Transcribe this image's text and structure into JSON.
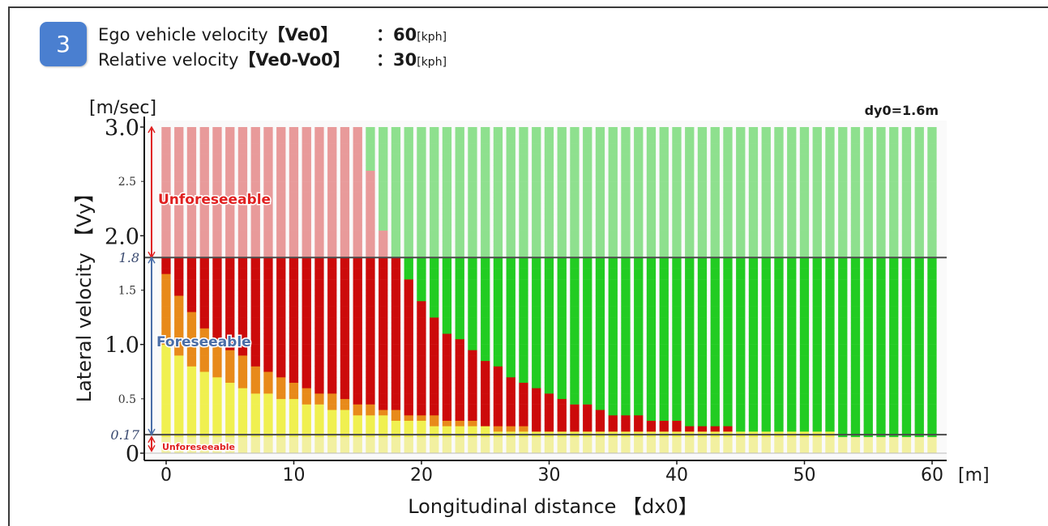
{
  "header": {
    "badge": "3",
    "line1": {
      "label": "Ego vehicle velocity",
      "param": "【Ve0】",
      "sep": "：",
      "value": "60",
      "unit": "[kph]"
    },
    "line2": {
      "label": "Relative velocity",
      "param": "【Ve0-Vo0】",
      "sep": "：",
      "value": "30",
      "unit": "[kph]"
    }
  },
  "chart_data": {
    "type": "heatmap",
    "title": "",
    "annotation": "dy0=1.6m",
    "xlabel": "Longitudinal distance 【dx0】",
    "x_unit": "[m]",
    "ylabel": "Lateral velocity 【Vy】",
    "y_unit": "[m/sec]",
    "xlim": [
      -1.5,
      61.5
    ],
    "ylim": [
      -0.05,
      3.08
    ],
    "x_ticks": [
      0,
      10,
      20,
      30,
      40,
      50,
      60
    ],
    "y_ticks_major": [
      0,
      1.0,
      2.0,
      3.0
    ],
    "y_ticks_minor": [
      0.5,
      1.5,
      2.5
    ],
    "y_ticks_italic": [
      0.17,
      1.8
    ],
    "x_step": 1,
    "y_step": 0.05,
    "thresholds": {
      "lower": 0.17,
      "upper": 1.8
    },
    "regions": [
      {
        "label": "Unforeseeable",
        "y_range": [
          1.8,
          3.0
        ],
        "color": "#e02020"
      },
      {
        "label": "Foreseeable",
        "y_range": [
          0.17,
          1.8
        ],
        "color": "#4a6ea8"
      },
      {
        "label": "Unforeseeable",
        "y_range": [
          0,
          0.17
        ],
        "color": "#e02020"
      }
    ],
    "boundary_red_green": {
      "x": [
        0,
        5,
        10,
        15,
        16,
        17,
        18,
        19,
        20,
        22,
        24,
        26,
        28,
        30,
        32,
        34,
        36,
        38,
        40,
        42,
        44,
        46,
        48,
        50,
        52,
        54,
        56
      ],
      "vy": [
        3.1,
        3.1,
        3.1,
        3.1,
        2.62,
        2.05,
        1.8,
        1.6,
        1.4,
        1.12,
        0.93,
        0.78,
        0.66,
        0.56,
        0.47,
        0.4,
        0.35,
        0.31,
        0.28,
        0.25,
        0.23,
        0.21,
        0.2,
        0.19,
        0.18,
        0.17,
        0.17
      ]
    },
    "boundary_orange_red": {
      "x": [
        0,
        2,
        4,
        6,
        8,
        10,
        12,
        14,
        16,
        18,
        20,
        22,
        24,
        26,
        28,
        30,
        34
      ],
      "vy": [
        1.65,
        1.3,
        1.05,
        0.88,
        0.76,
        0.66,
        0.57,
        0.5,
        0.44,
        0.39,
        0.35,
        0.31,
        0.28,
        0.25,
        0.23,
        0.21,
        0.18
      ]
    },
    "boundary_yellow_orange": {
      "x": [
        0,
        2,
        4,
        6,
        8,
        10,
        12,
        14,
        16,
        18,
        20,
        22,
        24,
        26,
        28
      ],
      "vy": [
        0.98,
        0.82,
        0.7,
        0.61,
        0.54,
        0.48,
        0.43,
        0.39,
        0.35,
        0.32,
        0.29,
        0.26,
        0.24,
        0.22,
        0.19
      ]
    },
    "colors": {
      "unforeseeable_red": "#e89a9a",
      "unforeseeable_green": "#8ee08e",
      "collision": "#cc0a0a",
      "safe": "#22cc22",
      "avoid_brake": "#e88a1a",
      "avoid_steer": "#f0f050",
      "below_threshold": "#f2f0a0"
    }
  }
}
